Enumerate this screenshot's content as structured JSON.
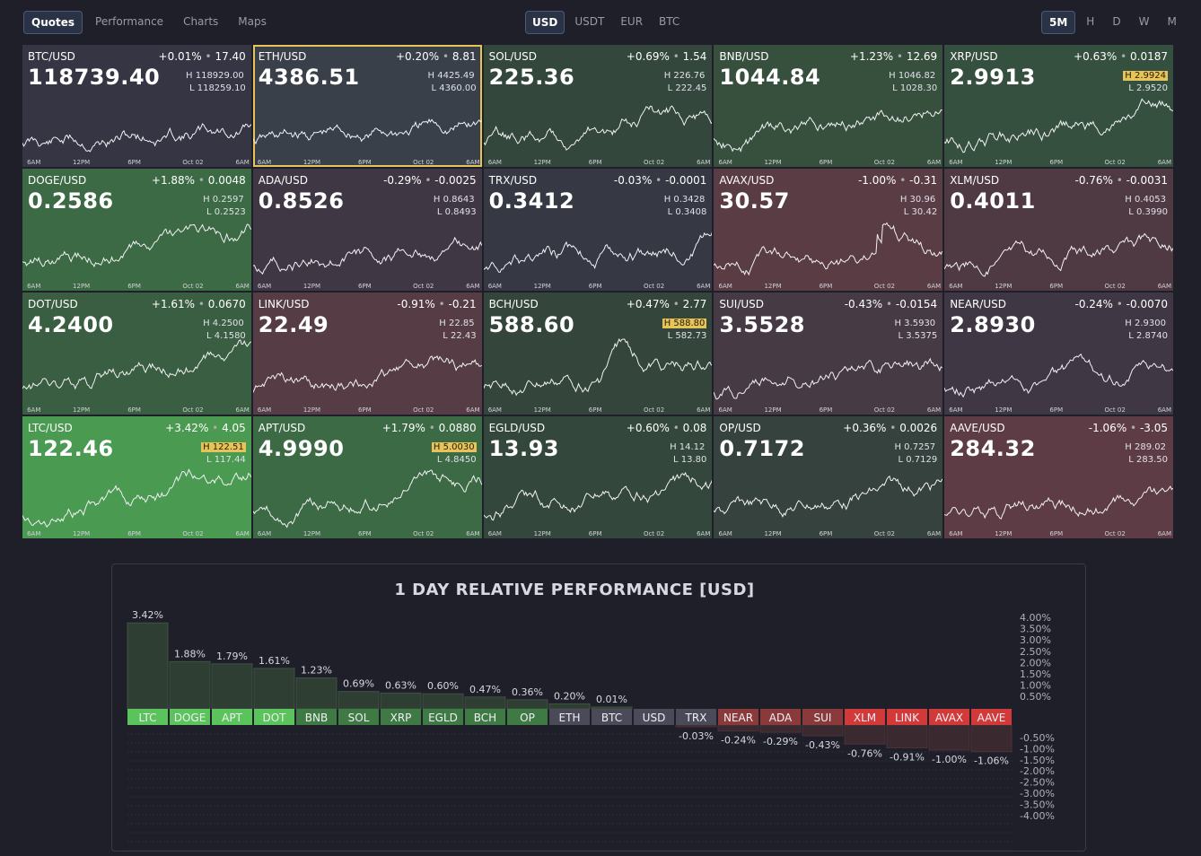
{
  "nav": {
    "tabs": [
      "Quotes",
      "Performance",
      "Charts",
      "Maps"
    ],
    "active": "Quotes"
  },
  "currencies": {
    "items": [
      "USD",
      "USDT",
      "EUR",
      "BTC"
    ],
    "active": "USD"
  },
  "timeframes": {
    "items": [
      "5M",
      "H",
      "D",
      "W",
      "M"
    ],
    "active": "5M"
  },
  "tile_axis_labels": [
    "6AM",
    "12PM",
    "6PM",
    "Oct 02",
    "6AM"
  ],
  "tiles": [
    {
      "symbol": "BTC/USD",
      "pct": "+0.01%",
      "chg": "17.40",
      "price": "118739.40",
      "high": "118929.00",
      "low": "118259.10",
      "high_mark": false,
      "color": "#353544",
      "trend": 0.3
    },
    {
      "symbol": "ETH/USD",
      "pct": "+0.20%",
      "chg": "8.81",
      "price": "4386.51",
      "high": "4425.49",
      "low": "4360.00",
      "high_mark": false,
      "color": "#39404a",
      "trend": 0.4,
      "selected": true
    },
    {
      "symbol": "SOL/USD",
      "pct": "+0.69%",
      "chg": "1.54",
      "price": "225.36",
      "high": "226.76",
      "low": "222.45",
      "high_mark": false,
      "color": "#34473d",
      "trend": 0.8
    },
    {
      "symbol": "BNB/USD",
      "pct": "+1.23%",
      "chg": "12.69",
      "price": "1044.84",
      "high": "1046.82",
      "low": "1028.30",
      "high_mark": false,
      "color": "#37503e",
      "trend": 0.9
    },
    {
      "symbol": "XRP/USD",
      "pct": "+0.63%",
      "chg": "0.0187",
      "price": "2.9913",
      "high": "2.9924",
      "low": "2.9520",
      "high_mark": true,
      "color": "#36503f",
      "trend": 0.8
    },
    {
      "symbol": "DOGE/USD",
      "pct": "+1.88%",
      "chg": "0.0048",
      "price": "0.2586",
      "high": "0.2597",
      "low": "0.2523",
      "high_mark": false,
      "color": "#3b6a44",
      "trend": 0.9
    },
    {
      "symbol": "ADA/USD",
      "pct": "-0.29%",
      "chg": "-0.0025",
      "price": "0.8526",
      "high": "0.8643",
      "low": "0.8493",
      "high_mark": false,
      "color": "#3f3844",
      "trend": 0.5
    },
    {
      "symbol": "TRX/USD",
      "pct": "-0.03%",
      "chg": "-0.0001",
      "price": "0.3412",
      "high": "0.3428",
      "low": "0.3408",
      "high_mark": false,
      "color": "#363844",
      "trend": 0.6
    },
    {
      "symbol": "AVAX/USD",
      "pct": "-1.00%",
      "chg": "-0.31",
      "price": "30.57",
      "high": "30.96",
      "low": "30.42",
      "high_mark": false,
      "color": "#5a3c45",
      "trend": 0.1
    },
    {
      "symbol": "XLM/USD",
      "pct": "-0.76%",
      "chg": "-0.0031",
      "price": "0.4011",
      "high": "0.4053",
      "low": "0.3990",
      "high_mark": false,
      "color": "#4f3a44",
      "trend": 0.5
    },
    {
      "symbol": "DOT/USD",
      "pct": "+1.61%",
      "chg": "0.0670",
      "price": "4.2400",
      "high": "4.2500",
      "low": "4.1580",
      "high_mark": false,
      "color": "#3a5e41",
      "trend": 0.9
    },
    {
      "symbol": "LINK/USD",
      "pct": "-0.91%",
      "chg": "-0.21",
      "price": "22.49",
      "high": "22.85",
      "low": "22.43",
      "high_mark": false,
      "color": "#553c45",
      "trend": 0.6
    },
    {
      "symbol": "BCH/USD",
      "pct": "+0.47%",
      "chg": "2.77",
      "price": "588.60",
      "high": "588.80",
      "low": "582.73",
      "high_mark": true,
      "color": "#34463c",
      "trend": 0.5
    },
    {
      "symbol": "SUI/USD",
      "pct": "-0.43%",
      "chg": "-0.0154",
      "price": "3.5528",
      "high": "3.5930",
      "low": "3.5375",
      "high_mark": false,
      "color": "#463a44",
      "trend": 0.6
    },
    {
      "symbol": "NEAR/USD",
      "pct": "-0.24%",
      "chg": "-0.0070",
      "price": "2.8930",
      "high": "2.9300",
      "low": "2.8740",
      "high_mark": false,
      "color": "#3f3844",
      "trend": 0.6
    },
    {
      "symbol": "LTC/USD",
      "pct": "+3.42%",
      "chg": "4.05",
      "price": "122.46",
      "high": "122.51",
      "low": "117.44",
      "high_mark": true,
      "color": "#4a9a52",
      "trend": 1.0
    },
    {
      "symbol": "APT/USD",
      "pct": "+1.79%",
      "chg": "0.0880",
      "price": "4.9990",
      "high": "5.0030",
      "low": "4.8450",
      "high_mark": true,
      "color": "#3b6a44",
      "trend": 0.9
    },
    {
      "symbol": "EGLD/USD",
      "pct": "+0.60%",
      "chg": "0.08",
      "price": "13.93",
      "high": "14.12",
      "low": "13.80",
      "high_mark": false,
      "color": "#34473d",
      "trend": 0.7
    },
    {
      "symbol": "OP/USD",
      "pct": "+0.36%",
      "chg": "0.0026",
      "price": "0.7172",
      "high": "0.7257",
      "low": "0.7129",
      "high_mark": false,
      "color": "#36423d",
      "trend": 0.7
    },
    {
      "symbol": "AAVE/USD",
      "pct": "-1.06%",
      "chg": "-3.05",
      "price": "284.32",
      "high": "289.02",
      "low": "283.50",
      "high_mark": false,
      "color": "#5e3c45",
      "trend": 0.3
    }
  ],
  "performance": {
    "title": "1 DAY RELATIVE PERFORMANCE  [USD]"
  },
  "chart_data": {
    "type": "bar",
    "title": "1 DAY RELATIVE PERFORMANCE  [USD]",
    "categories": [
      "LTC",
      "DOGE",
      "APT",
      "DOT",
      "BNB",
      "SOL",
      "XRP",
      "EGLD",
      "BCH",
      "OP",
      "ETH",
      "BTC",
      "USD",
      "TRX",
      "NEAR",
      "ADA",
      "SUI",
      "XLM",
      "LINK",
      "AVAX",
      "AAVE"
    ],
    "values": [
      3.42,
      1.88,
      1.79,
      1.61,
      1.23,
      0.69,
      0.63,
      0.6,
      0.47,
      0.36,
      0.2,
      0.01,
      0,
      -0.03,
      -0.24,
      -0.29,
      -0.43,
      -0.76,
      -0.91,
      -1.0,
      -1.06
    ],
    "value_labels": [
      "3.42%",
      "1.88%",
      "1.79%",
      "1.61%",
      "1.23%",
      "0.69%",
      "0.63%",
      "0.60%",
      "0.47%",
      "0.36%",
      "0.20%",
      "0.01%",
      "",
      "-0.03%",
      "-0.24%",
      "-0.29%",
      "-0.43%",
      "-0.76%",
      "-0.91%",
      "-1.00%",
      "-1.06%"
    ],
    "pos_ticks": [
      "4.00%",
      "3.50%",
      "3.00%",
      "2.50%",
      "2.00%",
      "1.50%",
      "1.00%",
      "0.50%"
    ],
    "neg_ticks": [
      "-0.50%",
      "-1.00%",
      "-1.50%",
      "-2.00%",
      "-2.50%",
      "-3.00%",
      "-3.50%",
      "-4.00%"
    ],
    "ylim": [
      -4,
      4
    ],
    "colors": {
      "pos_bright": "#5bc35b",
      "pos_dim": "#3f7a45",
      "neutral": "#4a4a58",
      "neg_dim": "#8a3a3a",
      "neg_bright": "#d23a3a"
    }
  }
}
